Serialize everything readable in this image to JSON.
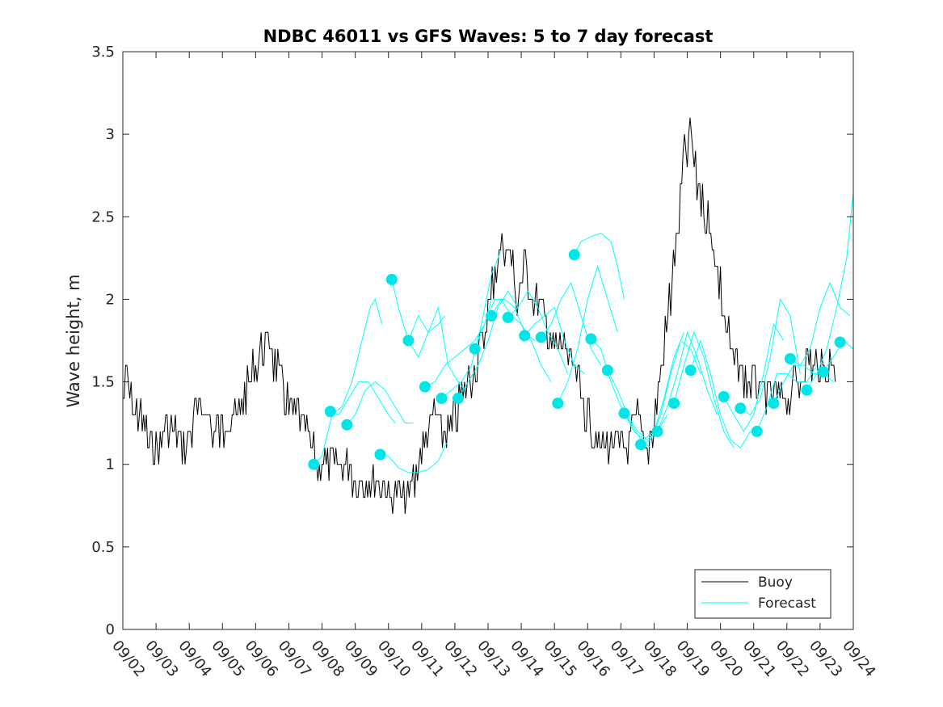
{
  "chart_data": {
    "type": "line",
    "title": "NDBC 46011 vs GFS Waves: 5 to 7 day forecast",
    "xlabel": "",
    "ylabel": "Wave height, m",
    "xlim": [
      0,
      22
    ],
    "ylim": [
      0,
      3.5
    ],
    "yticks": [
      0,
      0.5,
      1,
      1.5,
      2,
      2.5,
      3,
      3.5
    ],
    "ytick_labels": [
      "0",
      "0.5",
      "1",
      "1.5",
      "2",
      "2.5",
      "3",
      "3.5"
    ],
    "xtick_labels": [
      "09/02",
      "09/03",
      "09/04",
      "09/05",
      "09/06",
      "09/07",
      "09/08",
      "09/09",
      "09/10",
      "09/11",
      "09/12",
      "09/13",
      "09/14",
      "09/15",
      "09/16",
      "09/17",
      "09/18",
      "09/19",
      "09/20",
      "09/21",
      "09/22",
      "09/23",
      "09/24"
    ],
    "legend": {
      "position": "bottom-right",
      "entries": [
        "Buoy",
        "Forecast"
      ]
    },
    "colors": {
      "buoy": "#000000",
      "forecast": "#00ffff",
      "marker": "#00e5e5"
    },
    "buoy_keypoints": {
      "x": [
        0,
        0.15,
        0.3,
        0.5,
        0.8,
        1.2,
        1.6,
        1.9,
        2.1,
        2.5,
        2.8,
        3.2,
        3.5,
        3.8,
        4.0,
        4.2,
        4.4,
        4.6,
        4.8,
        5.0,
        5.2,
        5.5,
        5.7,
        5.9,
        6.1,
        6.5,
        6.9,
        7.3,
        7.7,
        8.0,
        8.3,
        8.7,
        9.0,
        9.3,
        9.5,
        9.8,
        10.1,
        10.4,
        10.6,
        10.8,
        11.0,
        11.2,
        11.4,
        11.6,
        11.9,
        12.1,
        12.4,
        12.7,
        12.9,
        13.2,
        13.4,
        13.6,
        13.9,
        14.2,
        14.4,
        14.6,
        14.9,
        15.2,
        15.5,
        15.8,
        16.0,
        16.3,
        16.6,
        16.9,
        17.1,
        17.3,
        17.6,
        17.8,
        17.9,
        18.0,
        18.2,
        18.4,
        18.6,
        18.8,
        19.0,
        19.2,
        19.4,
        19.7,
        20.0,
        20.3,
        20.6,
        20.9,
        21.1,
        21.3,
        21.5
      ],
      "y": [
        1.4,
        1.5,
        1.35,
        1.3,
        1.1,
        1.15,
        1.2,
        1.1,
        1.25,
        1.35,
        1.15,
        1.3,
        1.3,
        1.5,
        1.6,
        1.7,
        1.75,
        1.6,
        1.5,
        1.35,
        1.3,
        1.2,
        1.1,
        1.0,
        0.95,
        0.95,
        0.95,
        0.9,
        0.85,
        0.85,
        0.8,
        0.85,
        1.1,
        1.25,
        1.25,
        1.15,
        1.35,
        1.5,
        1.6,
        1.7,
        1.9,
        2.15,
        2.3,
        2.35,
        2.0,
        2.2,
        2.0,
        1.9,
        1.75,
        1.7,
        1.65,
        1.55,
        1.35,
        1.2,
        1.1,
        1.15,
        1.05,
        1.1,
        1.3,
        1.1,
        1.25,
        1.7,
        2.2,
        2.85,
        3.0,
        2.7,
        2.5,
        2.3,
        2.2,
        2.05,
        1.8,
        1.6,
        1.55,
        1.5,
        1.5,
        1.45,
        1.35,
        1.35,
        1.4,
        1.5,
        1.6,
        1.65,
        1.55,
        1.6,
        1.65
      ]
    },
    "forecast_series": [
      {
        "x": [
          5.75,
          6.0,
          6.3,
          6.6,
          6.9,
          7.2,
          7.45,
          7.6,
          7.8
        ],
        "y": [
          1.0,
          1.05,
          1.3,
          1.35,
          1.5,
          1.75,
          1.95,
          2.0,
          1.85
        ]
      },
      {
        "x": [
          6.25,
          6.5,
          6.8,
          7.1,
          7.4,
          7.7,
          8.0,
          8.2
        ],
        "y": [
          1.32,
          1.3,
          1.4,
          1.5,
          1.5,
          1.4,
          1.3,
          1.25
        ]
      },
      {
        "x": [
          6.75,
          7.0,
          7.3,
          7.6,
          7.9,
          8.2,
          8.5,
          8.75
        ],
        "y": [
          1.24,
          1.3,
          1.45,
          1.5,
          1.45,
          1.35,
          1.25,
          1.25
        ]
      },
      {
        "x": [
          7.75,
          8.0,
          8.3,
          8.6,
          8.9,
          9.2,
          9.5,
          9.75
        ],
        "y": [
          1.06,
          1.05,
          0.98,
          0.95,
          0.95,
          0.97,
          1.02,
          1.13
        ]
      },
      {
        "x": [
          8.1,
          8.3,
          8.6,
          8.9,
          9.2,
          9.5,
          9.7
        ],
        "y": [
          2.12,
          1.95,
          1.75,
          1.9,
          1.8,
          1.85,
          1.9
        ]
      },
      {
        "x": [
          8.6,
          8.9,
          9.2,
          9.5,
          9.8,
          10.1,
          10.3
        ],
        "y": [
          1.75,
          1.65,
          1.8,
          1.95,
          1.6,
          1.5,
          1.45
        ]
      },
      {
        "x": [
          9.1,
          9.4,
          9.7,
          10.0,
          10.3,
          10.6,
          10.9,
          11.1
        ],
        "y": [
          1.47,
          1.5,
          1.6,
          1.65,
          1.7,
          1.75,
          1.85,
          2.0
        ]
      },
      {
        "x": [
          9.6,
          9.9,
          10.2,
          10.5,
          10.8,
          11.1,
          11.4
        ],
        "y": [
          1.4,
          1.45,
          1.5,
          1.6,
          1.85,
          2.15,
          2.3
        ]
      },
      {
        "x": [
          10.1,
          10.4,
          10.7,
          11.0,
          11.3,
          11.6,
          11.9
        ],
        "y": [
          1.4,
          1.5,
          1.6,
          1.75,
          1.95,
          2.05,
          1.95
        ]
      },
      {
        "x": [
          10.6,
          10.9,
          11.2,
          11.5,
          11.8,
          12.1,
          12.4
        ],
        "y": [
          1.7,
          1.85,
          2.0,
          2.0,
          1.95,
          1.8,
          1.75
        ]
      },
      {
        "x": [
          11.1,
          11.4,
          11.7,
          12.0,
          12.3,
          12.6,
          12.9
        ],
        "y": [
          1.9,
          2.0,
          1.9,
          1.85,
          1.75,
          1.6,
          1.5
        ]
      },
      {
        "x": [
          11.6,
          11.9,
          12.2,
          12.5,
          12.8,
          13.1,
          13.4
        ],
        "y": [
          1.89,
          1.95,
          2.05,
          1.95,
          1.8,
          1.7,
          1.55
        ]
      },
      {
        "x": [
          12.1,
          12.4,
          12.7,
          13.0,
          13.3,
          13.6,
          13.9
        ],
        "y": [
          1.78,
          1.85,
          1.9,
          1.95,
          1.75,
          1.6,
          1.55
        ]
      },
      {
        "x": [
          12.6,
          12.9,
          13.2,
          13.5,
          13.8,
          14.1,
          14.4
        ],
        "y": [
          1.77,
          1.85,
          2.0,
          2.1,
          1.9,
          1.7,
          1.6
        ]
      },
      {
        "x": [
          13.1,
          13.4,
          13.7,
          14.0,
          14.3,
          14.6,
          14.9
        ],
        "y": [
          1.37,
          1.5,
          1.7,
          2.0,
          2.2,
          2.0,
          1.8
        ]
      },
      {
        "x": [
          13.6,
          13.8,
          14.1,
          14.4,
          14.7,
          14.9,
          15.1
        ],
        "y": [
          2.27,
          2.35,
          2.38,
          2.4,
          2.35,
          2.2,
          2.0
        ]
      },
      {
        "x": [
          14.1,
          14.4,
          14.7,
          15.0,
          15.3,
          15.6,
          15.9
        ],
        "y": [
          1.76,
          1.7,
          1.5,
          1.35,
          1.25,
          1.15,
          1.1
        ]
      },
      {
        "x": [
          14.6,
          14.9,
          15.2,
          15.5,
          15.8,
          16.1,
          16.4
        ],
        "y": [
          1.57,
          1.45,
          1.3,
          1.2,
          1.15,
          1.2,
          1.3
        ]
      },
      {
        "x": [
          15.1,
          15.4,
          15.7,
          16.0,
          16.3,
          16.6,
          16.9
        ],
        "y": [
          1.31,
          1.2,
          1.15,
          1.2,
          1.4,
          1.65,
          1.8
        ]
      },
      {
        "x": [
          15.6,
          15.9,
          16.2,
          16.5,
          16.8,
          17.1,
          17.4
        ],
        "y": [
          1.12,
          1.15,
          1.3,
          1.55,
          1.75,
          1.7,
          1.55
        ]
      },
      {
        "x": [
          16.1,
          16.4,
          16.7,
          17.0,
          17.3,
          17.6,
          17.9
        ],
        "y": [
          1.2,
          1.35,
          1.55,
          1.8,
          1.65,
          1.45,
          1.3
        ]
      },
      {
        "x": [
          16.6,
          16.9,
          17.2,
          17.5,
          17.8,
          18.1,
          18.4
        ],
        "y": [
          1.37,
          1.6,
          1.8,
          1.65,
          1.4,
          1.2,
          1.1
        ]
      },
      {
        "x": [
          17.1,
          17.4,
          17.7,
          18.0,
          18.3,
          18.6,
          18.9
        ],
        "y": [
          1.57,
          1.75,
          1.55,
          1.3,
          1.15,
          1.1,
          1.2
        ]
      },
      {
        "x": [
          18.1,
          18.4,
          18.7,
          19.0,
          19.3,
          19.6,
          19.9
        ],
        "y": [
          1.41,
          1.3,
          1.2,
          1.3,
          1.55,
          1.85,
          1.75
        ]
      },
      {
        "x": [
          18.6,
          18.9,
          19.2,
          19.5,
          19.8,
          20.1,
          20.4
        ],
        "y": [
          1.34,
          1.3,
          1.4,
          1.65,
          2.0,
          1.9,
          1.55
        ]
      },
      {
        "x": [
          19.1,
          19.4,
          19.7,
          20.0,
          20.3,
          20.6,
          20.9
        ],
        "y": [
          1.2,
          1.35,
          1.55,
          1.55,
          1.5,
          1.5,
          1.6
        ]
      },
      {
        "x": [
          19.6,
          19.9,
          20.2,
          20.5,
          20.8,
          21.1,
          21.4
        ],
        "y": [
          1.37,
          1.5,
          1.6,
          1.6,
          1.55,
          1.55,
          1.5
        ]
      },
      {
        "x": [
          20.1,
          20.4,
          20.7,
          21.0,
          21.3,
          21.6,
          21.9
        ],
        "y": [
          1.64,
          1.6,
          1.7,
          1.95,
          2.1,
          1.95,
          1.9
        ]
      },
      {
        "x": [
          20.6,
          20.9,
          21.2,
          21.5,
          21.8,
          22.0
        ],
        "y": [
          1.45,
          1.55,
          1.7,
          1.95,
          2.25,
          2.65
        ]
      },
      {
        "x": [
          21.1,
          21.4,
          21.7,
          22.0
        ],
        "y": [
          1.56,
          1.65,
          1.75,
          1.7
        ]
      }
    ],
    "forecast_markers": {
      "x": [
        5.75,
        6.25,
        6.75,
        7.75,
        8.1,
        8.6,
        9.1,
        9.6,
        10.1,
        10.6,
        11.1,
        11.6,
        12.1,
        12.6,
        13.1,
        13.6,
        14.1,
        14.6,
        15.1,
        15.6,
        16.1,
        16.6,
        17.1,
        18.1,
        18.6,
        19.1,
        19.6,
        20.1,
        20.6,
        21.1,
        21.6
      ],
      "y": [
        1.0,
        1.32,
        1.24,
        1.06,
        2.12,
        1.75,
        1.47,
        1.4,
        1.4,
        1.7,
        1.9,
        1.89,
        1.78,
        1.77,
        1.37,
        2.27,
        1.76,
        1.57,
        1.31,
        1.12,
        1.2,
        1.37,
        1.57,
        1.41,
        1.34,
        1.2,
        1.37,
        1.64,
        1.45,
        1.56,
        1.74
      ]
    }
  }
}
